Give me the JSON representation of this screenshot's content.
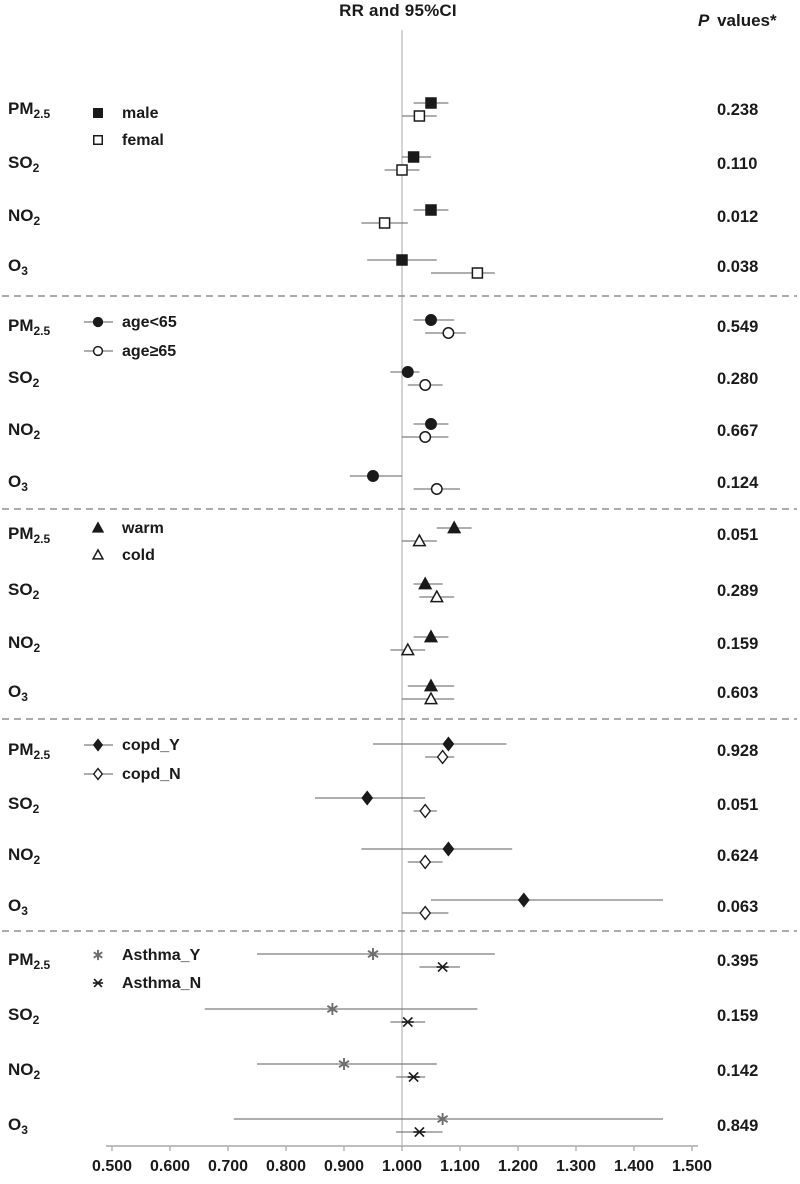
{
  "figure": {
    "title": "RR and 95%CI",
    "p_header_italic": "P",
    "p_header_rest": " values*"
  },
  "chart_data": {
    "type": "forest",
    "title": "RR and 95%CI",
    "p_column_header": "P values*",
    "x_axis": {
      "min": 0.5,
      "max": 1.5,
      "step": 0.1,
      "tick_labels": [
        "0.500",
        "0.600",
        "0.700",
        "0.800",
        "0.900",
        "1.000",
        "1.100",
        "1.200",
        "1.300",
        "1.400",
        "1.500"
      ],
      "reference_line": 1.0
    },
    "colors": {
      "ink": "#1a1a1a",
      "ci_line": "#7d7d7d",
      "reference_line": "#bdbdbd",
      "separator": "#8f8f8f",
      "gray_marker": "#6e6e6e"
    },
    "groups": [
      {
        "legend": [
          {
            "label": "male",
            "marker": "square",
            "fill": "filled"
          },
          {
            "label": "femal",
            "marker": "square",
            "fill": "open"
          }
        ],
        "legend_line": false,
        "rows": [
          {
            "pollutant": {
              "base": "PM",
              "sub": "2.5"
            },
            "p_value": "0.238",
            "estimates": [
              {
                "rr": 1.05,
                "ci_low": 1.02,
                "ci_high": 1.08
              },
              {
                "rr": 1.03,
                "ci_low": 1.0,
                "ci_high": 1.06
              }
            ]
          },
          {
            "pollutant": {
              "base": "SO",
              "sub": "2"
            },
            "p_value": "0.110",
            "estimates": [
              {
                "rr": 1.02,
                "ci_low": 1.0,
                "ci_high": 1.05
              },
              {
                "rr": 1.0,
                "ci_low": 0.97,
                "ci_high": 1.03
              }
            ]
          },
          {
            "pollutant": {
              "base": "NO",
              "sub": "2"
            },
            "p_value": "0.012",
            "estimates": [
              {
                "rr": 1.05,
                "ci_low": 1.02,
                "ci_high": 1.08
              },
              {
                "rr": 0.97,
                "ci_low": 0.93,
                "ci_high": 1.01
              }
            ]
          },
          {
            "pollutant": {
              "base": "O",
              "sub": "3"
            },
            "p_value": "0.038",
            "estimates": [
              {
                "rr": 1.0,
                "ci_low": 0.94,
                "ci_high": 1.06
              },
              {
                "rr": 1.13,
                "ci_low": 1.05,
                "ci_high": 1.16
              }
            ]
          }
        ]
      },
      {
        "legend": [
          {
            "label": "age<65",
            "marker": "circle",
            "fill": "filled"
          },
          {
            "label": "age≥65",
            "marker": "circle",
            "fill": "open"
          }
        ],
        "legend_line": true,
        "rows": [
          {
            "pollutant": {
              "base": "PM",
              "sub": "2.5"
            },
            "p_value": "0.549",
            "estimates": [
              {
                "rr": 1.05,
                "ci_low": 1.02,
                "ci_high": 1.09
              },
              {
                "rr": 1.08,
                "ci_low": 1.04,
                "ci_high": 1.11
              }
            ]
          },
          {
            "pollutant": {
              "base": "SO",
              "sub": "2"
            },
            "p_value": "0.280",
            "estimates": [
              {
                "rr": 1.01,
                "ci_low": 0.98,
                "ci_high": 1.03
              },
              {
                "rr": 1.04,
                "ci_low": 1.01,
                "ci_high": 1.07
              }
            ]
          },
          {
            "pollutant": {
              "base": "NO",
              "sub": "2"
            },
            "p_value": "0.667",
            "estimates": [
              {
                "rr": 1.05,
                "ci_low": 1.02,
                "ci_high": 1.08
              },
              {
                "rr": 1.04,
                "ci_low": 1.0,
                "ci_high": 1.08
              }
            ]
          },
          {
            "pollutant": {
              "base": "O",
              "sub": "3"
            },
            "p_value": "0.124",
            "estimates": [
              {
                "rr": 0.95,
                "ci_low": 0.91,
                "ci_high": 1.0
              },
              {
                "rr": 1.06,
                "ci_low": 1.02,
                "ci_high": 1.1
              }
            ]
          }
        ]
      },
      {
        "legend": [
          {
            "label": "warm",
            "marker": "triangle",
            "fill": "filled"
          },
          {
            "label": "cold",
            "marker": "triangle",
            "fill": "open"
          }
        ],
        "legend_line": false,
        "rows": [
          {
            "pollutant": {
              "base": "PM",
              "sub": "2.5"
            },
            "p_value": "0.051",
            "estimates": [
              {
                "rr": 1.09,
                "ci_low": 1.06,
                "ci_high": 1.12
              },
              {
                "rr": 1.03,
                "ci_low": 1.0,
                "ci_high": 1.06
              }
            ]
          },
          {
            "pollutant": {
              "base": "SO",
              "sub": "2"
            },
            "p_value": "0.289",
            "estimates": [
              {
                "rr": 1.04,
                "ci_low": 1.02,
                "ci_high": 1.07
              },
              {
                "rr": 1.06,
                "ci_low": 1.03,
                "ci_high": 1.09
              }
            ]
          },
          {
            "pollutant": {
              "base": "NO",
              "sub": "2"
            },
            "p_value": "0.159",
            "estimates": [
              {
                "rr": 1.05,
                "ci_low": 1.02,
                "ci_high": 1.08
              },
              {
                "rr": 1.01,
                "ci_low": 0.98,
                "ci_high": 1.04
              }
            ]
          },
          {
            "pollutant": {
              "base": "O",
              "sub": "3"
            },
            "p_value": "0.603",
            "estimates": [
              {
                "rr": 1.05,
                "ci_low": 1.01,
                "ci_high": 1.09
              },
              {
                "rr": 1.05,
                "ci_low": 1.0,
                "ci_high": 1.09
              }
            ]
          }
        ]
      },
      {
        "legend": [
          {
            "label": "copd_Y",
            "marker": "diamond",
            "fill": "filled"
          },
          {
            "label": "copd_N",
            "marker": "diamond",
            "fill": "open"
          }
        ],
        "legend_line": true,
        "rows": [
          {
            "pollutant": {
              "base": "PM",
              "sub": "2.5"
            },
            "p_value": "0.928",
            "estimates": [
              {
                "rr": 1.08,
                "ci_low": 0.95,
                "ci_high": 1.18
              },
              {
                "rr": 1.07,
                "ci_low": 1.04,
                "ci_high": 1.09
              }
            ]
          },
          {
            "pollutant": {
              "base": "SO",
              "sub": "2"
            },
            "p_value": "0.051",
            "estimates": [
              {
                "rr": 0.94,
                "ci_low": 0.85,
                "ci_high": 1.04
              },
              {
                "rr": 1.04,
                "ci_low": 1.02,
                "ci_high": 1.06
              }
            ]
          },
          {
            "pollutant": {
              "base": "NO",
              "sub": "2"
            },
            "p_value": "0.624",
            "estimates": [
              {
                "rr": 1.08,
                "ci_low": 0.93,
                "ci_high": 1.19
              },
              {
                "rr": 1.04,
                "ci_low": 1.01,
                "ci_high": 1.07
              }
            ]
          },
          {
            "pollutant": {
              "base": "O",
              "sub": "3"
            },
            "p_value": "0.063",
            "estimates": [
              {
                "rr": 1.21,
                "ci_low": 1.05,
                "ci_high": 1.45
              },
              {
                "rr": 1.04,
                "ci_low": 1.0,
                "ci_high": 1.08
              }
            ]
          }
        ]
      },
      {
        "legend": [
          {
            "label": "Asthma_Y",
            "marker": "asterisk",
            "fill": "gray"
          },
          {
            "label": "Asthma_N",
            "marker": "xcross",
            "fill": "filled"
          }
        ],
        "legend_line": false,
        "rows": [
          {
            "pollutant": {
              "base": "PM",
              "sub": "2.5"
            },
            "p_value": "0.395",
            "estimates": [
              {
                "rr": 0.95,
                "ci_low": 0.75,
                "ci_high": 1.16
              },
              {
                "rr": 1.07,
                "ci_low": 1.03,
                "ci_high": 1.1
              }
            ]
          },
          {
            "pollutant": {
              "base": "SO",
              "sub": "2"
            },
            "p_value": "0.159",
            "estimates": [
              {
                "rr": 0.88,
                "ci_low": 0.66,
                "ci_high": 1.13
              },
              {
                "rr": 1.01,
                "ci_low": 0.98,
                "ci_high": 1.04
              }
            ]
          },
          {
            "pollutant": {
              "base": "NO",
              "sub": "2"
            },
            "p_value": "0.142",
            "estimates": [
              {
                "rr": 0.9,
                "ci_low": 0.75,
                "ci_high": 1.06
              },
              {
                "rr": 1.02,
                "ci_low": 0.99,
                "ci_high": 1.04
              }
            ]
          },
          {
            "pollutant": {
              "base": "O",
              "sub": "3"
            },
            "p_value": "0.849",
            "estimates": [
              {
                "rr": 1.07,
                "ci_low": 0.71,
                "ci_high": 1.45
              },
              {
                "rr": 1.03,
                "ci_low": 0.99,
                "ci_high": 1.07
              }
            ]
          }
        ]
      }
    ]
  }
}
